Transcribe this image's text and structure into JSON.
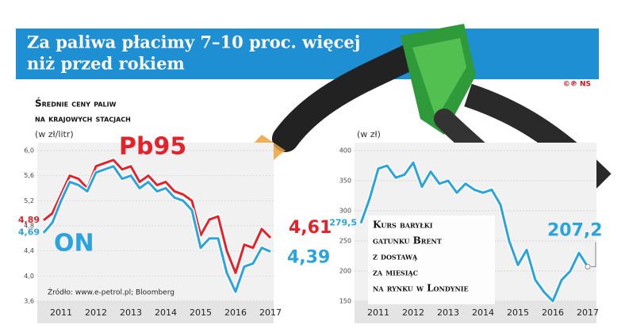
{
  "header": {
    "title": [
      "Za paliwa płacimy 7–10 proc. więcej",
      "niż przed rokiem"
    ],
    "credit": "©℗ NS"
  },
  "chart_data": [
    {
      "type": "line",
      "title": [
        "Średnie ceny paliw",
        "na krajowych stacjach"
      ],
      "unit": "(w zł/litr)",
      "source": "Źródło: www.e-petrol.pl; Bloomberg",
      "categories": [
        null,
        null,
        "2011",
        null,
        null,
        null,
        "2012",
        null,
        null,
        null,
        "2013",
        null,
        null,
        null,
        "2014",
        null,
        null,
        null,
        "2015",
        null,
        null,
        null,
        "2016",
        null,
        null,
        null,
        "2017"
      ],
      "ylim": [
        3.6,
        6.0
      ],
      "yticks": [
        {
          "value": 3.6,
          "label": "3,6"
        },
        {
          "value": 4.0,
          "label": "4,0"
        },
        {
          "value": 4.4,
          "label": "4,4"
        },
        {
          "value": 4.8,
          "label": "4,8"
        },
        {
          "value": 5.2,
          "label": "5,2"
        },
        {
          "value": 5.6,
          "label": "5,6"
        },
        {
          "value": 6.0,
          "label": "6,0"
        }
      ],
      "grid": true,
      "series": [
        {
          "name": "Pb95",
          "color": "#e3232c",
          "values": [
            4.89,
            5.0,
            5.3,
            5.6,
            5.55,
            5.4,
            5.75,
            5.8,
            5.85,
            5.7,
            5.75,
            5.5,
            5.6,
            5.45,
            5.5,
            5.35,
            5.3,
            5.2,
            4.65,
            4.9,
            4.95,
            4.4,
            4.05,
            4.5,
            4.45,
            4.75,
            4.61
          ],
          "value_labels": [
            "4,89",
            null,
            null,
            null,
            null,
            null,
            null,
            null,
            null,
            null,
            null,
            null,
            null,
            null,
            null,
            null,
            null,
            null,
            null,
            null,
            null,
            null,
            null,
            null,
            null,
            null,
            "4,61"
          ]
        },
        {
          "name": "ON",
          "color": "#2ba3dc",
          "values": [
            4.69,
            4.85,
            5.2,
            5.5,
            5.45,
            5.35,
            5.65,
            5.7,
            5.75,
            5.55,
            5.6,
            5.4,
            5.5,
            5.35,
            5.4,
            5.25,
            5.2,
            5.05,
            4.45,
            4.6,
            4.6,
            4.05,
            3.75,
            4.15,
            4.2,
            4.45,
            4.39
          ],
          "value_labels": [
            "4,69",
            null,
            null,
            null,
            null,
            null,
            null,
            null,
            null,
            null,
            null,
            null,
            null,
            null,
            null,
            null,
            null,
            null,
            null,
            null,
            null,
            null,
            null,
            null,
            null,
            null,
            "4,39"
          ]
        }
      ]
    },
    {
      "type": "line",
      "unit": "(w zł)",
      "annotation": [
        "Kurs baryłki",
        "gatunku Brent",
        "z dostawą",
        "za miesiąc",
        "na rynku w Londynie"
      ],
      "categories": [
        null,
        null,
        "2011",
        null,
        null,
        null,
        "2012",
        null,
        null,
        null,
        "2013",
        null,
        null,
        null,
        "2014",
        null,
        null,
        null,
        "2015",
        null,
        null,
        null,
        "2016",
        null,
        null,
        null,
        "2017"
      ],
      "ylim": [
        150,
        400
      ],
      "yticks": [
        150,
        200,
        250,
        300,
        350,
        400
      ],
      "grid": true,
      "series": [
        {
          "color": "#2ba3dc",
          "values": [
            279.5,
            320,
            370,
            375,
            355,
            360,
            380,
            340,
            365,
            345,
            350,
            330,
            345,
            335,
            330,
            335,
            310,
            250,
            210,
            235,
            185,
            165,
            150,
            185,
            200,
            230,
            207.2
          ],
          "value_labels": [
            "279,5",
            null,
            null,
            null,
            null,
            null,
            null,
            null,
            null,
            null,
            null,
            null,
            null,
            null,
            null,
            null,
            null,
            null,
            null,
            null,
            null,
            null,
            null,
            null,
            null,
            null,
            "207,2"
          ]
        }
      ]
    }
  ]
}
